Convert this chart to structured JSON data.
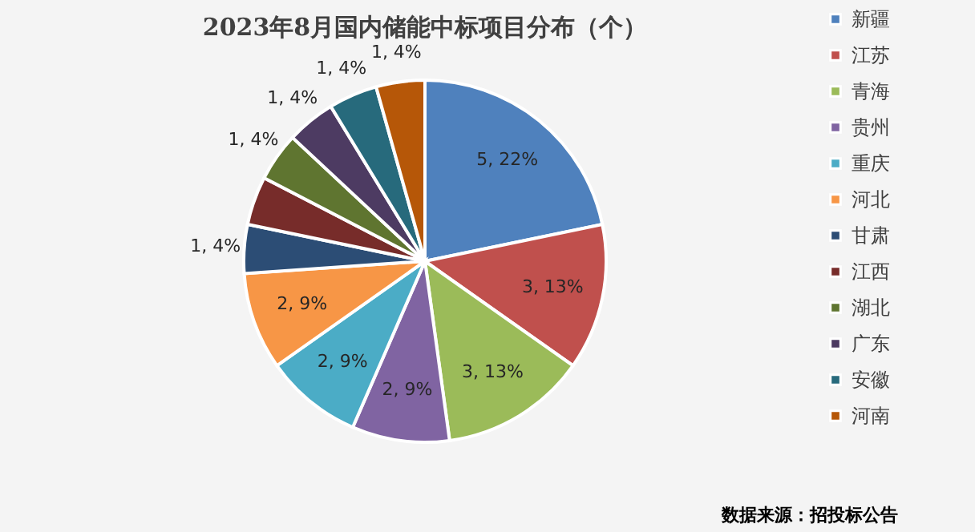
{
  "chart_data": {
    "type": "pie",
    "title": "2023年8月国内储能中标项目分布（个）",
    "categories": [
      "新疆",
      "江苏",
      "青海",
      "贵州",
      "重庆",
      "河北",
      "甘肃",
      "江西",
      "湖北",
      "广东",
      "安徽",
      "河南"
    ],
    "values": [
      5,
      3,
      3,
      2,
      2,
      2,
      1,
      1,
      1,
      1,
      1,
      1
    ],
    "colors": [
      "#4f81bd",
      "#c0504d",
      "#9bbb59",
      "#8064a2",
      "#4bacc6",
      "#f79646",
      "#2c4d75",
      "#772c2a",
      "#5f7530",
      "#4d3b62",
      "#276a7c",
      "#b65708"
    ],
    "value_labels": [
      "5, 22%",
      "3, 13%",
      "3, 13%",
      "2, 9%",
      "2, 9%",
      "2, 9%",
      "1, 4%",
      null,
      "1, 4%",
      "1, 4%",
      "1, 4%",
      "1, 4%"
    ],
    "legend": "right",
    "annotations": [
      "数据来源：招投标公告"
    ]
  }
}
